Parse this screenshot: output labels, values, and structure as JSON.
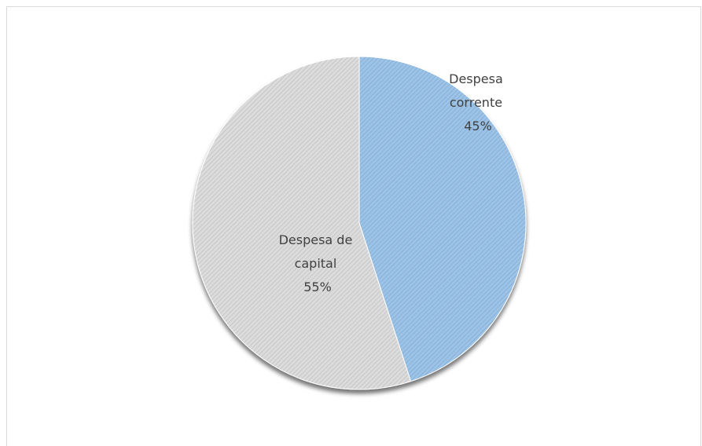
{
  "chart_data": {
    "type": "pie",
    "title": "",
    "slices": [
      {
        "label": "Despesa corrente",
        "percent_label": "45%",
        "value": 45,
        "color": "#9dc3e6"
      },
      {
        "label": "Despesa de capital",
        "percent_label": "55%",
        "value": 55,
        "color": "#d9d9d9"
      }
    ],
    "start_angle_deg": 0,
    "direction": "clockwise",
    "legend": "none",
    "pattern": "diagonal-hatch",
    "shadow": true
  },
  "labels": {
    "corrente_line1": "Despesa",
    "corrente_line2": "corrente",
    "corrente_pct": "45%",
    "capital_line1": "Despesa de",
    "capital_line2": "capital",
    "capital_pct": "55%"
  }
}
